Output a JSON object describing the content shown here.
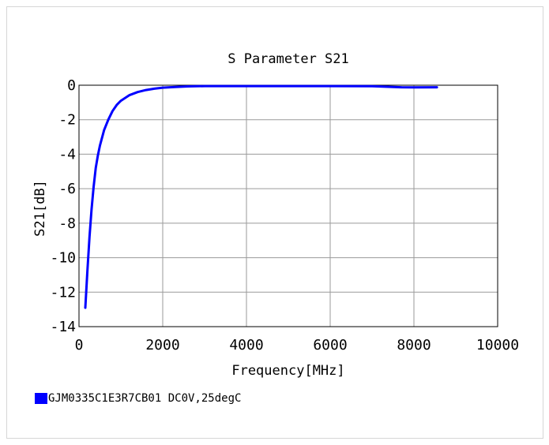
{
  "chart_data": {
    "type": "line",
    "title": "S Parameter S21",
    "xlabel": "Frequency[MHz]",
    "ylabel": "S21[dB]",
    "xlim": [
      0,
      10000
    ],
    "ylim": [
      -14,
      0
    ],
    "xticks": [
      0,
      2000,
      4000,
      6000,
      8000,
      10000
    ],
    "yticks": [
      0,
      -2,
      -4,
      -6,
      -8,
      -10,
      -12,
      -14
    ],
    "grid": true,
    "legend_position": "bottom-left",
    "series": [
      {
        "name": "GJM0335C1E3R7CB01 DC0V,25degC",
        "color": "#0000ff",
        "x": [
          150,
          200,
          250,
          300,
          350,
          400,
          450,
          500,
          600,
          700,
          800,
          900,
          1000,
          1200,
          1400,
          1600,
          1800,
          2000,
          2300,
          2600,
          3000,
          4000,
          5000,
          6000,
          7000,
          7700,
          8000,
          8550
        ],
        "y": [
          -12.9,
          -10.8,
          -8.8,
          -7.2,
          -5.9,
          -4.8,
          -4.1,
          -3.5,
          -2.6,
          -2.0,
          -1.5,
          -1.15,
          -0.9,
          -0.58,
          -0.4,
          -0.28,
          -0.2,
          -0.14,
          -0.1,
          -0.07,
          -0.05,
          -0.05,
          -0.05,
          -0.05,
          -0.06,
          -0.12,
          -0.13,
          -0.12
        ]
      }
    ]
  }
}
